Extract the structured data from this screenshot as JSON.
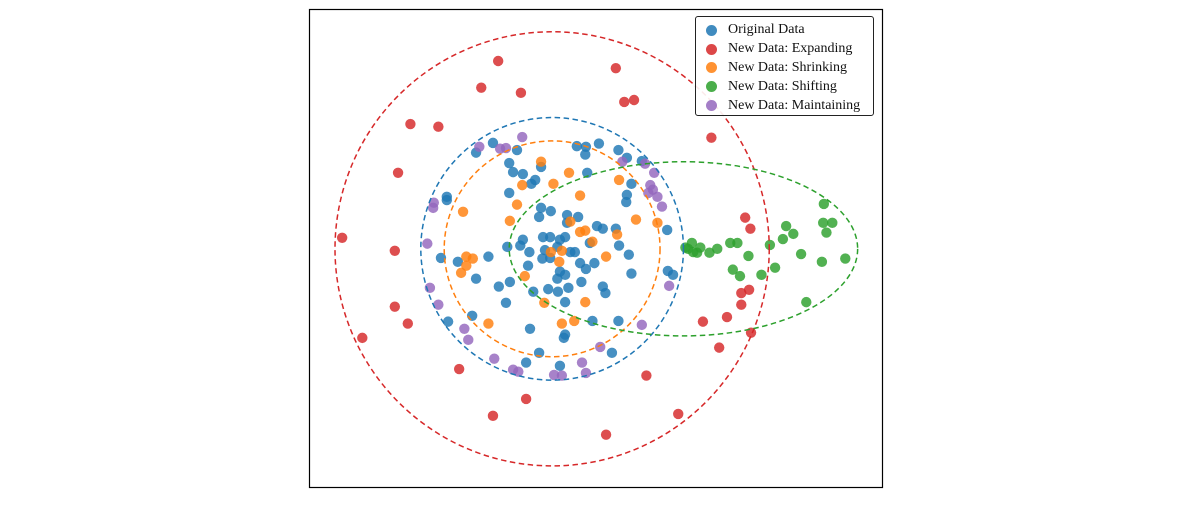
{
  "chart_data": {
    "type": "scatter",
    "title": "",
    "xlabel": "",
    "ylabel": "",
    "xlim": [
      -3.74,
      5.09
    ],
    "ylim": [
      -3.68,
      3.69
    ],
    "aspect": "equal",
    "axis_ticks": false,
    "grid": false,
    "legend_position": "top-right",
    "series": [
      {
        "name": "Original Data",
        "color": "#1f77b4",
        "points": [
          [
            -1.17,
            1.48
          ],
          [
            -0.91,
            1.63
          ],
          [
            -0.54,
            1.52
          ],
          [
            0.38,
            1.58
          ],
          [
            0.52,
            1.57
          ],
          [
            0.72,
            1.62
          ],
          [
            0.51,
            1.45
          ],
          [
            1.02,
            1.52
          ],
          [
            1.15,
            1.4
          ],
          [
            1.38,
            1.35
          ],
          [
            -0.66,
            1.32
          ],
          [
            -0.6,
            1.18
          ],
          [
            -0.45,
            1.15
          ],
          [
            -0.32,
            1.0
          ],
          [
            -0.26,
            1.06
          ],
          [
            -0.17,
            1.26
          ],
          [
            0.54,
            1.17
          ],
          [
            1.22,
            1.0
          ],
          [
            1.15,
            0.83
          ],
          [
            1.14,
            0.72
          ],
          [
            -1.62,
            0.8
          ],
          [
            -1.62,
            0.75
          ],
          [
            -0.66,
            0.86
          ],
          [
            -0.17,
            0.63
          ],
          [
            -0.02,
            0.58
          ],
          [
            -0.2,
            0.49
          ],
          [
            0.23,
            0.52
          ],
          [
            0.4,
            0.49
          ],
          [
            0.23,
            0.4
          ],
          [
            0.69,
            0.35
          ],
          [
            0.78,
            0.31
          ],
          [
            0.98,
            0.31
          ],
          [
            1.03,
            0.05
          ],
          [
            1.18,
            -0.09
          ],
          [
            -0.14,
            0.18
          ],
          [
            -0.03,
            0.18
          ],
          [
            0.12,
            0.14
          ],
          [
            0.2,
            0.18
          ],
          [
            -0.45,
            0.14
          ],
          [
            -0.49,
            0.05
          ],
          [
            -0.69,
            0.03
          ],
          [
            -0.35,
            -0.05
          ],
          [
            -0.11,
            -0.02
          ],
          [
            0.08,
            0.03
          ],
          [
            0.28,
            -0.05
          ],
          [
            0.35,
            -0.05
          ],
          [
            0.58,
            0.09
          ],
          [
            -1.71,
            -0.14
          ],
          [
            -1.45,
            -0.2
          ],
          [
            -0.98,
            -0.12
          ],
          [
            -0.15,
            -0.15
          ],
          [
            -0.03,
            -0.14
          ],
          [
            -0.37,
            -0.26
          ],
          [
            0.43,
            -0.22
          ],
          [
            0.52,
            -0.31
          ],
          [
            0.65,
            -0.22
          ],
          [
            0.12,
            -0.35
          ],
          [
            0.2,
            -0.4
          ],
          [
            0.08,
            -0.46
          ],
          [
            -1.17,
            -0.46
          ],
          [
            -0.82,
            -0.58
          ],
          [
            -0.65,
            -0.51
          ],
          [
            -0.06,
            -0.62
          ],
          [
            0.09,
            -0.66
          ],
          [
            0.25,
            -0.6
          ],
          [
            0.45,
            -0.51
          ],
          [
            0.78,
            -0.58
          ],
          [
            0.82,
            -0.68
          ],
          [
            1.22,
            -0.38
          ],
          [
            -0.29,
            -0.66
          ],
          [
            0.2,
            -0.82
          ],
          [
            -0.71,
            -0.83
          ],
          [
            1.77,
            0.29
          ],
          [
            1.78,
            -0.34
          ],
          [
            1.86,
            -0.4
          ],
          [
            -1.23,
            -1.03
          ],
          [
            -1.6,
            -1.12
          ],
          [
            -0.34,
            -1.23
          ],
          [
            0.2,
            -1.32
          ],
          [
            0.18,
            -1.37
          ],
          [
            0.62,
            -1.11
          ],
          [
            1.02,
            -1.11
          ],
          [
            -0.2,
            -1.6
          ],
          [
            -0.4,
            -1.75
          ],
          [
            0.12,
            -1.8
          ],
          [
            0.92,
            -1.6
          ]
        ]
      },
      {
        "name": "New Data: Expanding",
        "color": "#d62728",
        "points": [
          [
            -0.83,
            2.89
          ],
          [
            0.98,
            2.78
          ],
          [
            -1.09,
            2.48
          ],
          [
            -0.48,
            2.4
          ],
          [
            1.11,
            2.26
          ],
          [
            1.26,
            2.29
          ],
          [
            -2.18,
            1.92
          ],
          [
            -1.75,
            1.88
          ],
          [
            2.45,
            1.71
          ],
          [
            -2.37,
            1.17
          ],
          [
            -3.23,
            0.17
          ],
          [
            -2.42,
            -0.03
          ],
          [
            2.97,
            0.48
          ],
          [
            3.05,
            0.31
          ],
          [
            2.91,
            -0.68
          ],
          [
            3.03,
            -0.63
          ],
          [
            2.91,
            -0.86
          ],
          [
            -2.42,
            -0.89
          ],
          [
            -2.22,
            -1.15
          ],
          [
            -2.92,
            -1.37
          ],
          [
            2.32,
            -1.12
          ],
          [
            2.69,
            -1.05
          ],
          [
            3.06,
            -1.29
          ],
          [
            2.57,
            -1.52
          ],
          [
            -1.43,
            -1.85
          ],
          [
            1.45,
            -1.95
          ],
          [
            -0.4,
            -2.31
          ],
          [
            -0.91,
            -2.57
          ],
          [
            1.94,
            -2.54
          ],
          [
            0.83,
            -2.86
          ]
        ]
      },
      {
        "name": "New Data: Shrinking",
        "color": "#ff7f0e",
        "points": [
          [
            -0.17,
            1.34
          ],
          [
            0.26,
            1.17
          ],
          [
            -0.46,
            0.98
          ],
          [
            0.02,
            1.0
          ],
          [
            0.43,
            0.82
          ],
          [
            1.03,
            1.06
          ],
          [
            -0.54,
            0.68
          ],
          [
            -0.65,
            0.43
          ],
          [
            -1.37,
            0.57
          ],
          [
            0.28,
            0.42
          ],
          [
            0.43,
            0.26
          ],
          [
            0.51,
            0.28
          ],
          [
            0.62,
            0.11
          ],
          [
            1.0,
            0.22
          ],
          [
            1.29,
            0.45
          ],
          [
            1.62,
            0.4
          ],
          [
            -1.32,
            -0.12
          ],
          [
            -1.22,
            -0.15
          ],
          [
            -1.32,
            -0.26
          ],
          [
            -1.4,
            -0.37
          ],
          [
            -0.02,
            -0.05
          ],
          [
            0.15,
            -0.03
          ],
          [
            0.11,
            -0.2
          ],
          [
            0.83,
            -0.12
          ],
          [
            -0.42,
            -0.42
          ],
          [
            -0.12,
            -0.83
          ],
          [
            0.51,
            -0.82
          ],
          [
            -0.98,
            -1.15
          ],
          [
            0.15,
            -1.15
          ],
          [
            0.34,
            -1.11
          ]
        ]
      },
      {
        "name": "New Data: Shifting",
        "color": "#2ca02c",
        "points": [
          [
            2.05,
            0.02
          ],
          [
            2.09,
            0.0
          ],
          [
            2.15,
            0.09
          ],
          [
            2.17,
            -0.05
          ],
          [
            2.23,
            -0.06
          ],
          [
            2.28,
            0.02
          ],
          [
            2.42,
            -0.06
          ],
          [
            2.54,
            0.0
          ],
          [
            2.74,
            0.09
          ],
          [
            2.85,
            0.09
          ],
          [
            3.02,
            -0.11
          ],
          [
            2.78,
            -0.32
          ],
          [
            2.89,
            -0.42
          ],
          [
            3.22,
            -0.4
          ],
          [
            3.35,
            0.06
          ],
          [
            3.43,
            -0.29
          ],
          [
            3.55,
            0.15
          ],
          [
            3.6,
            0.35
          ],
          [
            3.71,
            0.23
          ],
          [
            3.83,
            -0.08
          ],
          [
            4.18,
            0.69
          ],
          [
            4.17,
            0.4
          ],
          [
            4.31,
            0.4
          ],
          [
            4.22,
            0.25
          ],
          [
            4.15,
            -0.2
          ],
          [
            4.51,
            -0.15
          ],
          [
            3.91,
            -0.82
          ]
        ]
      },
      {
        "name": "New Data: Maintaining",
        "color": "#9467bd",
        "points": [
          [
            -1.12,
            1.57
          ],
          [
            -0.8,
            1.54
          ],
          [
            -0.71,
            1.55
          ],
          [
            -0.46,
            1.72
          ],
          [
            -1.82,
            0.71
          ],
          [
            -1.83,
            0.63
          ],
          [
            -1.92,
            0.08
          ],
          [
            -1.88,
            -0.6
          ],
          [
            -1.75,
            -0.86
          ],
          [
            -1.35,
            -1.23
          ],
          [
            -1.29,
            -1.4
          ],
          [
            -0.89,
            -1.69
          ],
          [
            -0.6,
            -1.86
          ],
          [
            -0.52,
            -1.89
          ],
          [
            0.03,
            -1.94
          ],
          [
            0.15,
            -1.95
          ],
          [
            0.46,
            -1.75
          ],
          [
            0.52,
            -1.91
          ],
          [
            0.74,
            -1.51
          ],
          [
            1.38,
            -1.17
          ],
          [
            1.08,
            1.34
          ],
          [
            1.43,
            1.31
          ],
          [
            1.57,
            1.17
          ],
          [
            1.51,
            0.98
          ],
          [
            1.55,
            0.91
          ],
          [
            1.48,
            0.86
          ],
          [
            1.62,
            0.8
          ],
          [
            1.69,
            0.65
          ],
          [
            1.8,
            -0.57
          ]
        ]
      }
    ],
    "boundaries": [
      {
        "series": "Original Data",
        "color": "#1f77b4",
        "center": [
          0,
          0
        ],
        "rx": 2.02,
        "ry": 2.02,
        "style": "dashed"
      },
      {
        "series": "New Data: Expanding",
        "color": "#d62728",
        "center": [
          0,
          0
        ],
        "rx": 3.34,
        "ry": 3.34,
        "style": "dashed"
      },
      {
        "series": "New Data: Shrinking",
        "color": "#ff7f0e",
        "center": [
          0,
          0
        ],
        "rx": 1.66,
        "ry": 1.66,
        "style": "dashed"
      },
      {
        "series": "New Data: Shifting",
        "color": "#2ca02c",
        "center": [
          2.02,
          0
        ],
        "rx": 2.68,
        "ry": 1.34,
        "style": "dashed"
      }
    ]
  }
}
